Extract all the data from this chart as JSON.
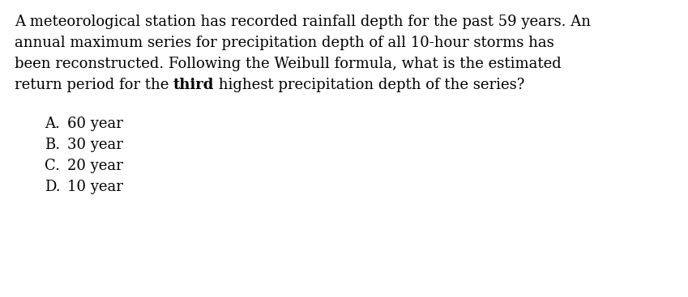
{
  "background_color": "#ffffff",
  "lines": [
    "A meteorological station has recorded rainfall depth for the past 59 years. An",
    "annual maximum series for precipitation depth of all 10-hour storms has",
    "been reconstructed. Following the Weibull formula, what is the estimated",
    "return period for the "
  ],
  "bold_word": "third",
  "line4_post": " highest precipitation depth of the series?",
  "options": [
    {
      "label": "A.",
      "value": "60 year"
    },
    {
      "label": "B.",
      "value": "30 year"
    },
    {
      "label": "C.",
      "value": "20 year"
    },
    {
      "label": "D.",
      "value": "10 year"
    }
  ],
  "font_family": "DejaVu Serif",
  "font_size": 13.0,
  "text_color": "#000000",
  "fig_width": 8.49,
  "fig_height": 3.67,
  "dpi": 100
}
